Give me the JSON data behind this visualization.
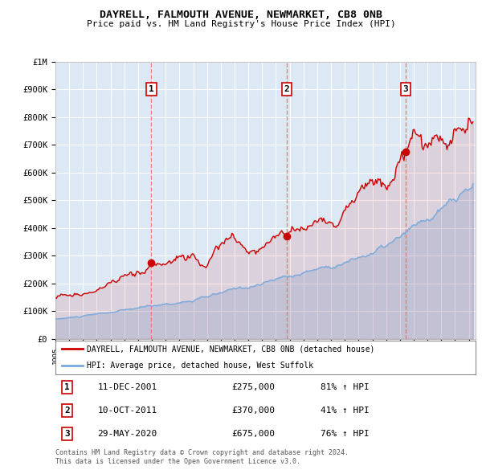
{
  "title": "DAYRELL, FALMOUTH AVENUE, NEWMARKET, CB8 0NB",
  "subtitle": "Price paid vs. HM Land Registry's House Price Index (HPI)",
  "legend_line1": "DAYRELL, FALMOUTH AVENUE, NEWMARKET, CB8 0NB (detached house)",
  "legend_line2": "HPI: Average price, detached house, West Suffolk",
  "footer1": "Contains HM Land Registry data © Crown copyright and database right 2024.",
  "footer2": "This data is licensed under the Open Government Licence v3.0.",
  "transactions": [
    {
      "label": "1",
      "date": "11-DEC-2001",
      "price": 275000,
      "hpi_pct": "81%",
      "year": 2001.958
    },
    {
      "label": "2",
      "date": "10-OCT-2011",
      "price": 370000,
      "hpi_pct": "41%",
      "year": 2011.775
    },
    {
      "label": "3",
      "date": "29-MAY-2020",
      "price": 675000,
      "hpi_pct": "76%",
      "year": 2020.413
    }
  ],
  "ylim": [
    0,
    1000000
  ],
  "yticks": [
    0,
    100000,
    200000,
    300000,
    400000,
    500000,
    600000,
    700000,
    800000,
    900000,
    1000000
  ],
  "ytick_labels": [
    "£0",
    "£100K",
    "£200K",
    "£300K",
    "£400K",
    "£500K",
    "£600K",
    "£700K",
    "£800K",
    "£900K",
    "£1M"
  ],
  "xlim_start": 1995.0,
  "xlim_end": 2025.5,
  "xticks": [
    1995,
    1996,
    1997,
    1998,
    1999,
    2000,
    2001,
    2002,
    2003,
    2004,
    2005,
    2006,
    2007,
    2008,
    2009,
    2010,
    2011,
    2012,
    2013,
    2014,
    2015,
    2016,
    2017,
    2018,
    2019,
    2020,
    2021,
    2022,
    2023,
    2024,
    2025
  ],
  "bg_color": "#dce9f5",
  "grid_color": "#ffffff",
  "red_line_color": "#cc0000",
  "blue_line_color": "#7aaadd",
  "dashed_line_color": "#ff6666",
  "marker_color": "#cc0000",
  "box_edge_color": "#cc0000",
  "outer_bg": "#ffffff"
}
